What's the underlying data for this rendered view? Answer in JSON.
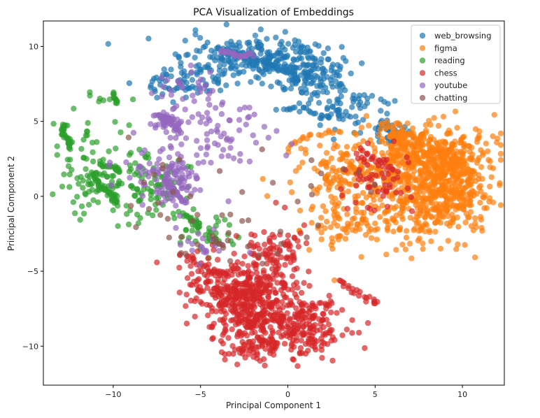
{
  "chart_data": {
    "type": "scatter",
    "title": "PCA Visualization of Embeddings",
    "xlabel": "Principal Component 1",
    "ylabel": "Principal Component 2",
    "xlim": [
      -14,
      12.4
    ],
    "ylim": [
      -12.6,
      11.7
    ],
    "xticks": [
      -10,
      -5,
      0,
      5,
      10
    ],
    "yticks": [
      -10,
      -5,
      0,
      5,
      10
    ],
    "grid": false,
    "legend_position": "top-right",
    "point_alpha": 0.7,
    "series": [
      {
        "name": "web_browsing",
        "color": "#1f77b4",
        "clusters": [
          {
            "cx": -1.5,
            "cy": 9.0,
            "sx": 2.2,
            "sy": 0.8,
            "n": 260
          },
          {
            "cx": 1.0,
            "cy": 8.0,
            "sx": 1.0,
            "sy": 0.6,
            "n": 90
          },
          {
            "cx": -6.0,
            "cy": 7.5,
            "sx": 1.2,
            "sy": 0.6,
            "n": 60
          },
          {
            "cx": 3.5,
            "cy": 5.8,
            "sx": 1.3,
            "sy": 0.8,
            "n": 70
          },
          {
            "cx": 5.8,
            "cy": 4.3,
            "sx": 0.6,
            "sy": 0.4,
            "n": 40
          }
        ],
        "curves": [
          {
            "x": [
              -4.0,
              -3.0,
              -2.0,
              -1.0,
              0.0,
              1.0
            ],
            "y": [
              9.8,
              9.5,
              9.2,
              8.9,
              8.4,
              8.1
            ],
            "n": 40,
            "jitter": 0.15
          },
          {
            "x": [
              -0.5,
              0.5,
              1.5,
              2.5
            ],
            "y": [
              5.8,
              5.9,
              5.6,
              5.3
            ],
            "n": 18,
            "jitter": 0.12
          }
        ]
      },
      {
        "name": "figma",
        "color": "#ff7f0e",
        "clusters": [
          {
            "cx": 8.5,
            "cy": 2.5,
            "sx": 1.5,
            "sy": 1.0,
            "n": 420
          },
          {
            "cx": 7.5,
            "cy": -0.5,
            "sx": 1.5,
            "sy": 1.4,
            "n": 260
          },
          {
            "cx": 9.5,
            "cy": 0.5,
            "sx": 1.0,
            "sy": 1.2,
            "n": 150
          },
          {
            "cx": 3.5,
            "cy": 1.5,
            "sx": 1.6,
            "sy": 1.3,
            "n": 160
          },
          {
            "cx": 3.0,
            "cy": -1.5,
            "sx": 1.2,
            "sy": 1.0,
            "n": 60
          },
          {
            "cx": 6.5,
            "cy": 3.8,
            "sx": 1.2,
            "sy": 0.7,
            "n": 80
          }
        ],
        "curves": [
          {
            "x": [
              0.0,
              1.0,
              2.0,
              3.0
            ],
            "y": [
              3.4,
              3.8,
              4.2,
              4.5
            ],
            "n": 18,
            "jitter": 0.12
          },
          {
            "x": [
              2.5,
              3.5,
              4.5
            ],
            "y": [
              -2.8,
              -2.2,
              -1.6
            ],
            "n": 14,
            "jitter": 0.12
          }
        ]
      },
      {
        "name": "reading",
        "color": "#2ca02c",
        "clusters": [
          {
            "cx": -10.5,
            "cy": 0.8,
            "sx": 1.0,
            "sy": 1.1,
            "n": 90
          },
          {
            "cx": -7.8,
            "cy": 0.8,
            "sx": 1.0,
            "sy": 1.0,
            "n": 70
          },
          {
            "cx": -11.0,
            "cy": 3.0,
            "sx": 1.0,
            "sy": 1.2,
            "n": 25
          },
          {
            "cx": -4.5,
            "cy": -2.5,
            "sx": 0.8,
            "sy": 0.6,
            "n": 35
          },
          {
            "cx": -10.5,
            "cy": 6.6,
            "sx": 0.8,
            "sy": 0.6,
            "n": 8
          }
        ],
        "curves": [
          {
            "x": [
              -12.8,
              -12.9,
              -12.6,
              -12.5
            ],
            "y": [
              4.8,
              4.3,
              3.8,
              3.2
            ],
            "n": 34,
            "jitter": 0.06
          },
          {
            "x": [
              -11.2,
              -10.8,
              -10.4,
              -10.0,
              -9.8
            ],
            "y": [
              1.4,
              0.8,
              0.4,
              0.0,
              -0.4
            ],
            "n": 40,
            "jitter": 0.06
          },
          {
            "x": [
              -10.8,
              -10.0,
              -9.6
            ],
            "y": [
              2.1,
              2.0,
              1.6
            ],
            "n": 18,
            "jitter": 0.05
          },
          {
            "x": [
              -10.0,
              -9.9,
              -9.8
            ],
            "y": [
              6.9,
              6.5,
              6.2
            ],
            "n": 12,
            "jitter": 0.04
          },
          {
            "x": [
              -6.0,
              -5.4,
              -5.0
            ],
            "y": [
              -1.2,
              -1.6,
              -2.0
            ],
            "n": 20,
            "jitter": 0.12
          }
        ]
      },
      {
        "name": "chess",
        "color": "#d62728",
        "clusters": [
          {
            "cx": -2.0,
            "cy": -7.2,
            "sx": 1.4,
            "sy": 1.3,
            "n": 380
          },
          {
            "cx": 0.8,
            "cy": -8.8,
            "sx": 1.3,
            "sy": 1.0,
            "n": 200
          },
          {
            "cx": -3.5,
            "cy": -5.8,
            "sx": 1.3,
            "sy": 1.0,
            "n": 120
          },
          {
            "cx": -0.8,
            "cy": -3.6,
            "sx": 0.8,
            "sy": 1.0,
            "n": 80
          },
          {
            "cx": -2.0,
            "cy": -10.2,
            "sx": 1.0,
            "sy": 0.6,
            "n": 50
          },
          {
            "cx": 5.2,
            "cy": 1.0,
            "sx": 0.9,
            "sy": 1.2,
            "n": 60
          }
        ],
        "curves": [
          {
            "x": [
              -6.2,
              -5.3,
              -4.4,
              -3.5
            ],
            "y": [
              -3.8,
              -4.3,
              -4.9,
              -5.3
            ],
            "n": 25,
            "jitter": 0.12
          },
          {
            "x": [
              3.0,
              3.6,
              4.4,
              5.2
            ],
            "y": [
              -5.5,
              -6.3,
              -6.8,
              -7.0
            ],
            "n": 22,
            "jitter": 0.12
          },
          {
            "x": [
              4.0,
              4.6,
              5.2,
              5.6
            ],
            "y": [
              2.6,
              2.8,
              2.2,
              1.8
            ],
            "n": 14,
            "jitter": 0.12
          }
        ]
      },
      {
        "name": "youtube",
        "color": "#9467bd",
        "clusters": [
          {
            "cx": -7.0,
            "cy": 5.0,
            "sx": 0.6,
            "sy": 0.4,
            "n": 30
          },
          {
            "cx": -6.5,
            "cy": 0.8,
            "sx": 0.8,
            "sy": 0.7,
            "n": 60
          },
          {
            "cx": -4.0,
            "cy": 4.0,
            "sx": 1.5,
            "sy": 1.2,
            "n": 70
          },
          {
            "cx": -7.5,
            "cy": 1.5,
            "sx": 1.2,
            "sy": 1.0,
            "n": 50
          },
          {
            "cx": -4.5,
            "cy": -3.2,
            "sx": 0.9,
            "sy": 0.6,
            "n": 20
          },
          {
            "cx": -5.5,
            "cy": 7.0,
            "sx": 1.0,
            "sy": 0.7,
            "n": 30
          }
        ],
        "curves": [
          {
            "x": [
              -3.8,
              -3.2,
              -2.6,
              -2.0
            ],
            "y": [
              9.7,
              9.5,
              9.4,
              9.5
            ],
            "n": 28,
            "jitter": 0.08
          },
          {
            "x": [
              -7.6,
              -7.0,
              -6.6,
              -6.2
            ],
            "y": [
              5.5,
              5.2,
              4.8,
              4.4
            ],
            "n": 24,
            "jitter": 0.08
          },
          {
            "x": [
              -7.0,
              -6.6,
              -6.2,
              -5.8
            ],
            "y": [
              1.0,
              0.5,
              0.0,
              -0.5
            ],
            "n": 26,
            "jitter": 0.08
          }
        ]
      },
      {
        "name": "chatting",
        "color": "#8c564b",
        "clusters": [
          {
            "cx": -5.5,
            "cy": -1.5,
            "sx": 2.0,
            "sy": 1.5,
            "n": 22
          },
          {
            "cx": 2.5,
            "cy": 1.5,
            "sx": 2.5,
            "sy": 2.0,
            "n": 12
          },
          {
            "cx": -7.0,
            "cy": 1.5,
            "sx": 1.2,
            "sy": 1.2,
            "n": 10
          },
          {
            "cx": -1.0,
            "cy": -3.5,
            "sx": 1.5,
            "sy": 1.0,
            "n": 6
          }
        ],
        "curves": [
          {
            "x": [
              -4.3,
              -4.0,
              -3.7
            ],
            "y": [
              -2.6,
              -3.0,
              -3.4
            ],
            "n": 6,
            "jitter": 0.06
          }
        ]
      }
    ]
  }
}
